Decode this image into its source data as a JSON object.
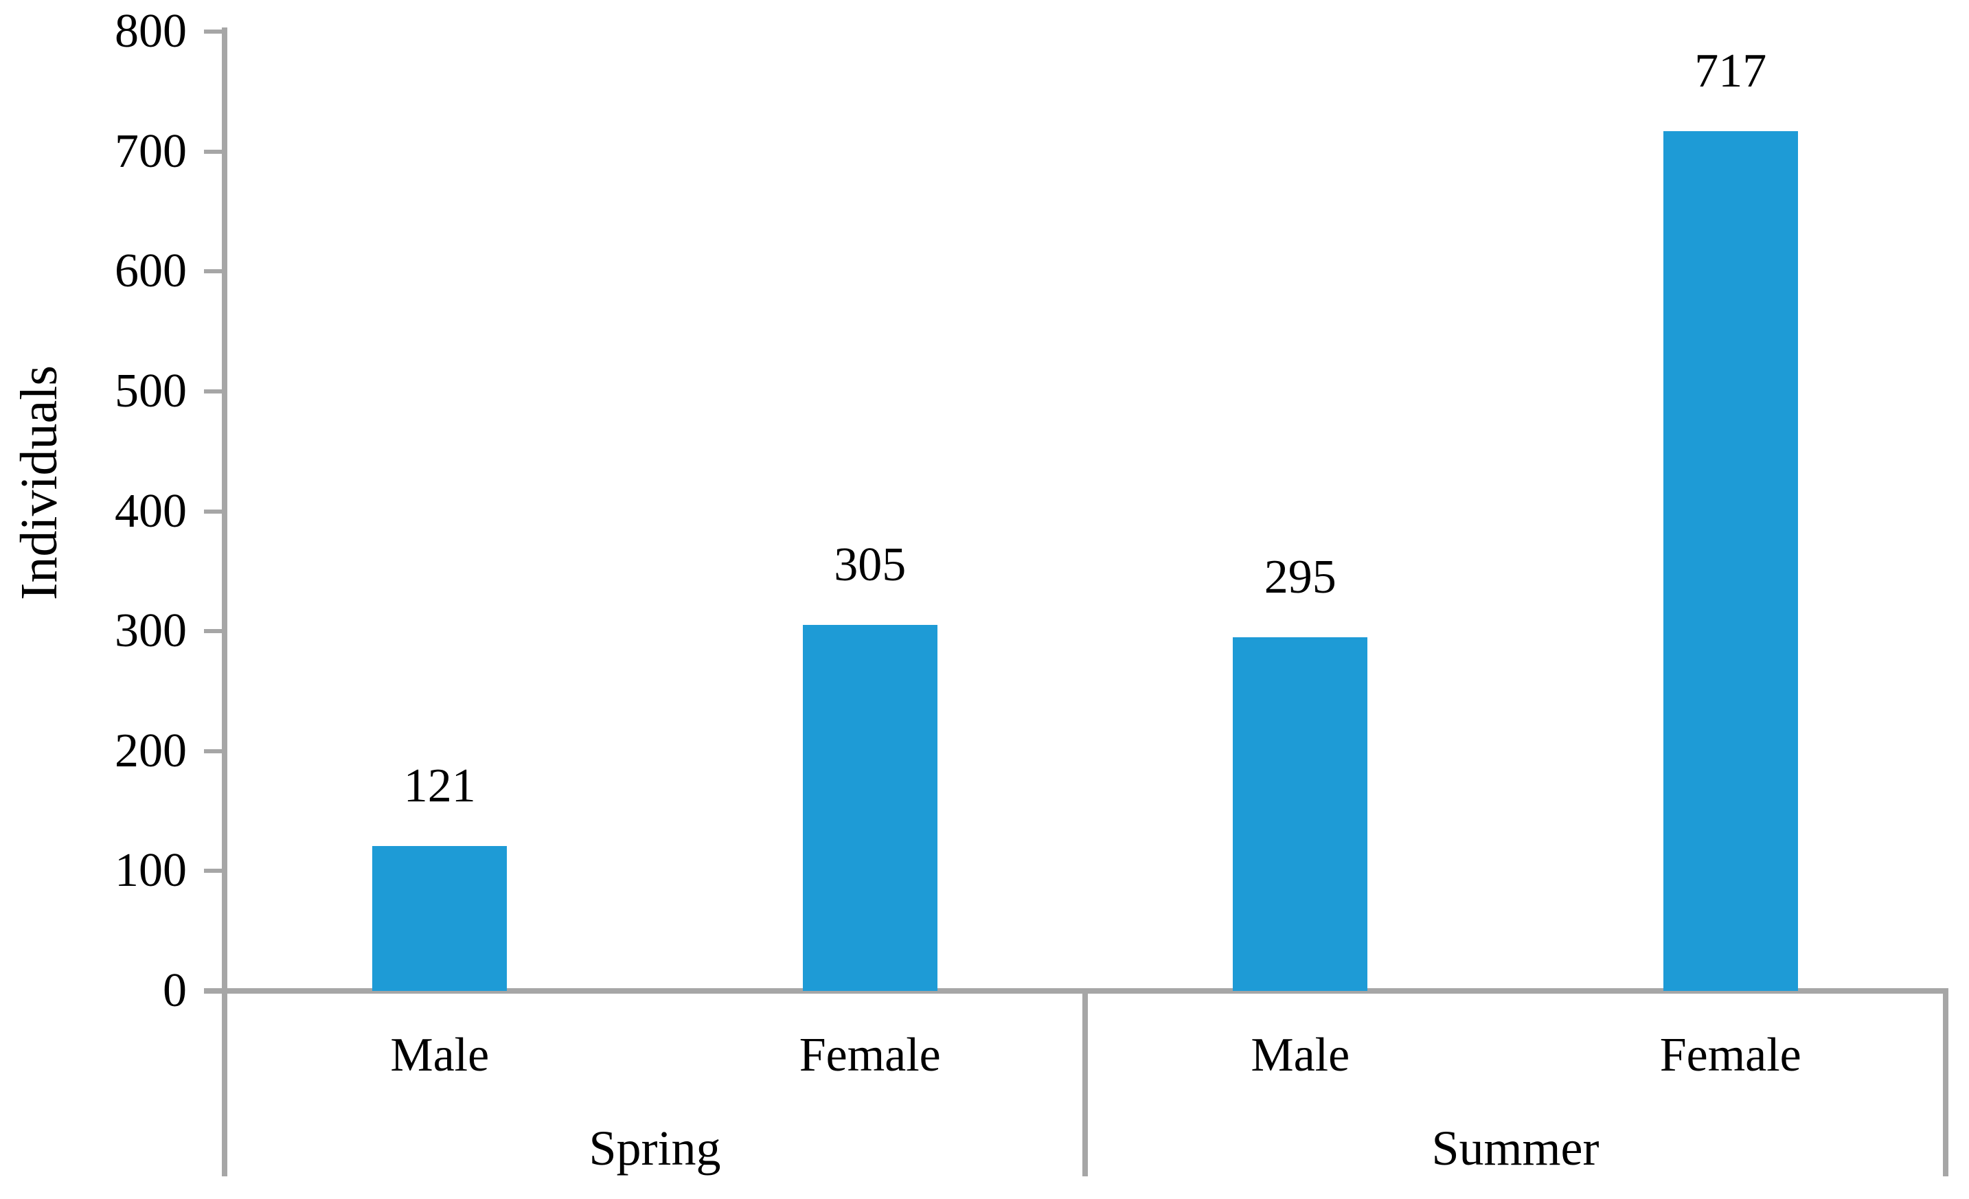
{
  "chart_data": {
    "type": "bar",
    "title": "",
    "ylabel": "Individuals",
    "xlabel": "",
    "ylim": [
      0,
      800
    ],
    "ytick_step": 100,
    "yticks": [
      0,
      100,
      200,
      300,
      400,
      500,
      600,
      700,
      800
    ],
    "grid": false,
    "legend": false,
    "bar_color": "#1E9BD6",
    "axis_color": "#A6A6A6",
    "text_color": "#000000",
    "groups": [
      {
        "label": "Spring",
        "categories": [
          "Male",
          "Female"
        ],
        "values": [
          121,
          305
        ]
      },
      {
        "label": "Summer",
        "categories": [
          "Male",
          "Female"
        ],
        "values": [
          295,
          717
        ]
      }
    ],
    "data_labels": [
      121,
      305,
      295,
      717
    ]
  }
}
